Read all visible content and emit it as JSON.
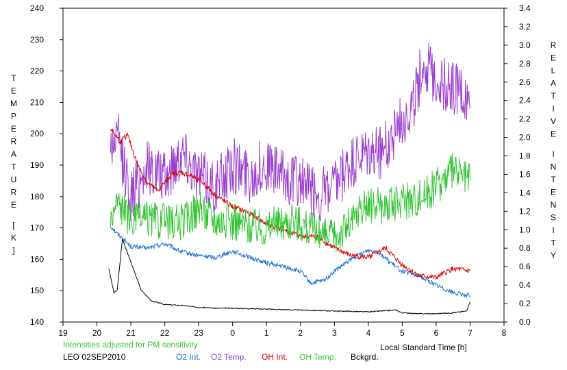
{
  "chart_data": {
    "type": "line",
    "xlabel": "Local Standard Time [h]",
    "ylabel_left": "TEMPERATURE [K]",
    "ylabel_right": "RELATIVE INTENSITY",
    "note": "Intensities adjusted for PM sensitivity",
    "station_label": "LEO 02SEP2010",
    "x_ticks": [
      "19",
      "20",
      "21",
      "22",
      "23",
      "0",
      "1",
      "2",
      "3",
      "4",
      "5",
      "6",
      "7",
      "8"
    ],
    "y_left_ticks": [
      "140",
      "150",
      "160",
      "170",
      "180",
      "190",
      "200",
      "210",
      "220",
      "230",
      "240"
    ],
    "y_right_ticks": [
      "0.0",
      "0.2",
      "0.4",
      "0.6",
      "0.8",
      "1.0",
      "1.2",
      "1.4",
      "1.6",
      "1.8",
      "2.0",
      "2.2",
      "2.4",
      "2.6",
      "2.8",
      "3.0",
      "3.2",
      "3.4"
    ],
    "xlim": [
      19,
      32
    ],
    "ylim_left": [
      140,
      240
    ],
    "ylim_right": [
      0,
      3.4
    ],
    "grid": false,
    "legend_position": "bottom",
    "series": [
      {
        "name": "O2 Int.",
        "axis": "right",
        "color": "#1a73d9",
        "x": [
          20.4,
          20.6,
          21.0,
          21.5,
          22.0,
          22.5,
          23.0,
          23.5,
          24.0,
          24.5,
          25.0,
          25.5,
          26.0,
          26.3,
          26.7,
          27.0,
          27.5,
          28.0,
          28.3,
          28.6,
          29.0,
          29.5,
          30.0,
          30.5,
          31.0
        ],
        "y": [
          1.04,
          0.96,
          0.82,
          0.8,
          0.85,
          0.76,
          0.72,
          0.7,
          0.77,
          0.7,
          0.64,
          0.6,
          0.55,
          0.42,
          0.45,
          0.55,
          0.68,
          0.78,
          0.76,
          0.66,
          0.55,
          0.5,
          0.4,
          0.32,
          0.28
        ]
      },
      {
        "name": "O2 Temp.",
        "axis": "left",
        "color": "#9b3fcf",
        "x": [
          20.4,
          20.6,
          21.0,
          21.5,
          22.0,
          22.5,
          23.0,
          23.5,
          24.0,
          24.5,
          25.0,
          25.5,
          26.0,
          26.5,
          27.0,
          27.5,
          28.0,
          28.5,
          29.0,
          29.3,
          29.6,
          30.0,
          30.3,
          30.6,
          31.0
        ],
        "y": [
          196,
          199,
          180,
          190,
          185,
          195,
          187,
          183,
          190,
          187,
          190,
          186,
          185,
          180,
          182,
          190,
          193,
          195,
          205,
          208,
          222,
          218,
          215,
          215,
          208
        ]
      },
      {
        "name": "OH Int.",
        "axis": "right",
        "color": "#e00000",
        "x": [
          20.4,
          20.7,
          20.9,
          21.2,
          21.5,
          21.8,
          22.2,
          22.5,
          23.0,
          23.5,
          24.0,
          24.5,
          25.0,
          25.5,
          26.0,
          26.5,
          27.0,
          27.5,
          28.0,
          28.5,
          29.0,
          29.5,
          30.0,
          30.5,
          31.0
        ],
        "y": [
          2.1,
          1.95,
          2.03,
          1.7,
          1.5,
          1.42,
          1.6,
          1.62,
          1.55,
          1.37,
          1.25,
          1.18,
          1.06,
          1.0,
          0.93,
          0.92,
          0.8,
          0.72,
          0.7,
          0.8,
          0.62,
          0.5,
          0.48,
          0.58,
          0.55
        ]
      },
      {
        "name": "OH Temp.",
        "axis": "left",
        "color": "#33c433",
        "x": [
          20.4,
          20.6,
          21.0,
          21.5,
          22.0,
          22.5,
          23.0,
          23.5,
          24.0,
          24.5,
          25.0,
          25.5,
          26.0,
          26.5,
          27.0,
          27.5,
          28.0,
          28.5,
          29.0,
          29.5,
          30.0,
          30.5,
          31.0
        ],
        "y": [
          172,
          179,
          172,
          173,
          172,
          172,
          176,
          173,
          172,
          171,
          170,
          172,
          172,
          168,
          167,
          172,
          177,
          177,
          178,
          180,
          183,
          188,
          185
        ]
      },
      {
        "name": "Bckgrd.",
        "axis": "right",
        "color": "#000000",
        "x": [
          20.35,
          20.5,
          20.6,
          20.75,
          20.9,
          21.1,
          21.3,
          21.6,
          22.0,
          22.5,
          23.0,
          23.5,
          24.0,
          25.0,
          26.0,
          27.0,
          28.0,
          28.8,
          29.0,
          29.5,
          30.0,
          30.5,
          30.9,
          31.0
        ],
        "y": [
          0.58,
          0.32,
          0.35,
          0.9,
          0.75,
          0.55,
          0.35,
          0.23,
          0.19,
          0.18,
          0.16,
          0.15,
          0.15,
          0.14,
          0.13,
          0.12,
          0.11,
          0.13,
          0.1,
          0.09,
          0.09,
          0.1,
          0.12,
          0.22
        ]
      }
    ]
  }
}
